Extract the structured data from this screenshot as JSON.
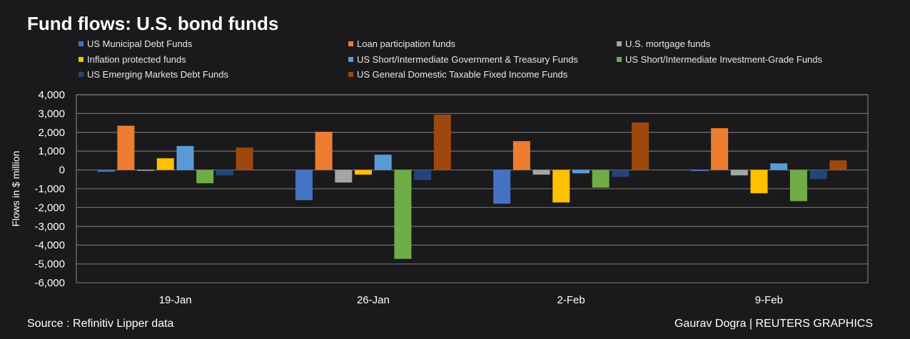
{
  "chart_data": {
    "type": "bar",
    "title": "Fund flows: U.S. bond funds",
    "ylabel": "Flows in $ million",
    "xlabel": "",
    "ylim": [
      -6000,
      4000
    ],
    "yticks": [
      4000,
      3000,
      2000,
      1000,
      0,
      -1000,
      -2000,
      -3000,
      -4000,
      -5000,
      -6000
    ],
    "ytick_labels": [
      "4,000",
      "3,000",
      "2,000",
      "1,000",
      "0",
      "-1,000",
      "-2,000",
      "-3,000",
      "-4,000",
      "-5,000",
      "-6,000"
    ],
    "grid": true,
    "legend_position": "top",
    "categories": [
      "19-Jan",
      "26-Jan",
      "2-Feb",
      "9-Feb"
    ],
    "series": [
      {
        "name": "US Municipal Debt Funds",
        "color": "#4472C4",
        "values": [
          -100,
          -1610,
          -1800,
          -60
        ]
      },
      {
        "name": "Loan participation funds",
        "color": "#ED7D31",
        "values": [
          2350,
          2030,
          1530,
          2220
        ]
      },
      {
        "name": "U.S. mortgage funds",
        "color": "#A5A5A5",
        "values": [
          -50,
          -670,
          -250,
          -290
        ]
      },
      {
        "name": "Inflation protected funds",
        "color": "#FFC000",
        "values": [
          620,
          -250,
          -1730,
          -1240
        ]
      },
      {
        "name": "US Short/Intermediate Government & Treasury Funds",
        "color": "#5B9BD5",
        "values": [
          1270,
          810,
          -180,
          350
        ]
      },
      {
        "name": "US Short/Intermediate Investment-Grade Funds",
        "color": "#70AD47",
        "values": [
          -710,
          -4730,
          -940,
          -1660
        ]
      },
      {
        "name": "US Emerging Markets Debt Funds",
        "color": "#264478",
        "values": [
          -290,
          -540,
          -370,
          -480
        ]
      },
      {
        "name": "US General Domestic Taxable Fixed Income Funds",
        "color": "#9E480E",
        "values": [
          1190,
          2940,
          2520,
          510
        ]
      }
    ]
  },
  "footer": {
    "source": "Source : Refinitiv Lipper data",
    "credit": "Gaurav Dogra | REUTERS GRAPHICS"
  }
}
